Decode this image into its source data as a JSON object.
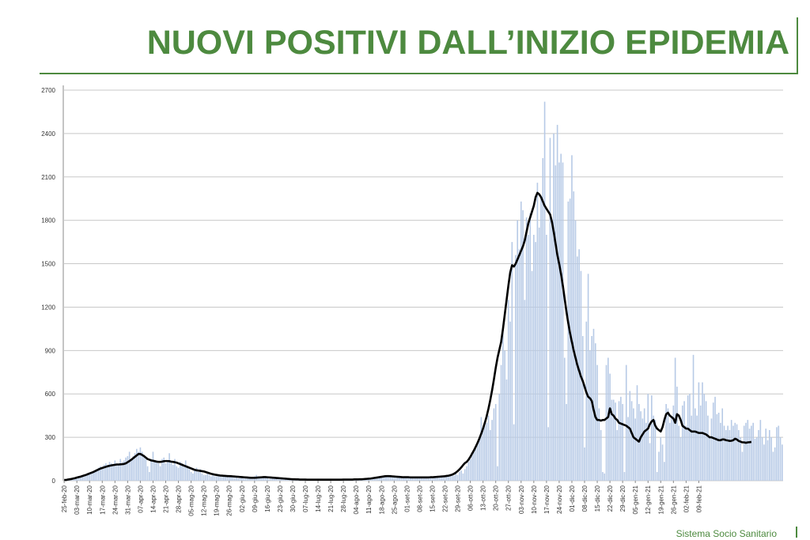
{
  "slide": {
    "title": "NUOVI POSITIVI DALL’INIZIO EPIDEMIA",
    "footer": "Sistema Socio Sanitario"
  },
  "colors": {
    "title": "#4d8a3f",
    "bars": "#b7cae6",
    "line": "#000000",
    "grid": "#c8c8c8"
  },
  "chart_data": {
    "type": "bar",
    "title": "",
    "xlabel": "",
    "ylabel": "",
    "ylim": [
      0,
      2700
    ],
    "yticks": [
      0,
      300,
      600,
      900,
      1200,
      1500,
      1800,
      2100,
      2400,
      2700
    ],
    "grid": true,
    "x_start": "25-feb-20",
    "tick_every_days": 7,
    "xtick_labels": [
      "25-feb-20",
      "03-mar-20",
      "10-mar-20",
      "17-mar-20",
      "24-mar-20",
      "31-mar-20",
      "07-apr-20",
      "14-apr-20",
      "21-apr-20",
      "28-apr-20",
      "05-mag-20",
      "12-mag-20",
      "19-mag-20",
      "26-mag-20",
      "02-giu-20",
      "09-giu-20",
      "16-giu-20",
      "23-giu-20",
      "30-giu-20",
      "07-lug-20",
      "14-lug-20",
      "21-lug-20",
      "28-lug-20",
      "04-ago-20",
      "11-ago-20",
      "18-ago-20",
      "25-ago-20",
      "01-set-20",
      "08-set-20",
      "15-set-20",
      "22-set-20",
      "29-set-20",
      "06-ott-20",
      "13-ott-20",
      "20-ott-20",
      "27-ott-20",
      "03-nov-20",
      "10-nov-20",
      "17-nov-20",
      "24-nov-20",
      "01-dic-20",
      "08-dic-20",
      "15-dic-20",
      "22-dic-20",
      "29-dic-20",
      "05-gen-21",
      "12-gen-21",
      "19-gen-21",
      "26-gen-21",
      "02-feb-21",
      "09-feb-21"
    ],
    "series": [
      {
        "kind": "bar",
        "values": [
          0,
          0,
          5,
          10,
          15,
          15,
          20,
          25,
          20,
          30,
          35,
          40,
          45,
          50,
          55,
          60,
          60,
          70,
          80,
          90,
          100,
          90,
          110,
          120,
          110,
          130,
          120,
          100,
          140,
          120,
          110,
          150,
          130,
          140,
          160,
          170,
          200,
          150,
          170,
          190,
          220,
          200,
          230,
          200,
          180,
          150,
          100,
          60,
          150,
          200,
          130,
          140,
          120,
          100,
          150,
          160,
          120,
          140,
          190,
          130,
          110,
          150,
          100,
          90,
          130,
          120,
          100,
          140,
          90,
          80,
          60,
          50,
          70,
          90,
          60,
          80,
          50,
          40,
          40,
          50,
          40,
          30,
          40,
          30,
          30,
          30,
          40,
          30,
          35,
          30,
          40,
          35,
          30,
          25,
          20,
          25,
          15,
          20,
          20,
          15,
          15,
          20,
          20,
          25,
          20,
          30,
          40,
          30,
          30,
          25,
          20,
          25,
          20,
          10,
          15,
          20,
          15,
          15,
          10,
          10,
          10,
          10,
          15,
          10,
          10,
          10,
          5,
          5,
          10,
          10,
          5,
          5,
          5,
          10,
          5,
          5,
          5,
          10,
          5,
          5,
          5,
          5,
          5,
          5,
          10,
          5,
          5,
          5,
          10,
          5,
          5,
          5,
          10,
          5,
          5,
          10,
          10,
          5,
          5,
          5,
          10,
          10,
          5,
          10,
          15,
          5,
          10,
          15,
          10,
          10,
          20,
          15,
          20,
          25,
          20,
          25,
          30,
          35,
          30,
          30,
          40,
          30,
          35,
          30,
          30,
          35,
          25,
          30,
          25,
          20,
          25,
          30,
          20,
          20,
          25,
          20,
          25,
          20,
          15,
          20,
          25,
          15,
          20,
          25,
          20,
          20,
          30,
          25,
          25,
          25,
          30,
          40,
          30,
          30,
          45,
          35,
          50,
          40,
          60,
          70,
          50,
          80,
          100,
          130,
          150,
          180,
          200,
          220,
          250,
          300,
          440,
          350,
          380,
          400,
          450,
          350,
          420,
          500,
          530,
          100,
          600,
          800,
          1040,
          900,
          700,
          1250,
          1100,
          1650,
          390,
          1560,
          1800,
          1600,
          1930,
          1870,
          1250,
          1820,
          1700,
          1850,
          1450,
          1700,
          1650,
          2060,
          1750,
          1950,
          2230,
          2620,
          1700,
          370,
          2370,
          1800,
          2400,
          2180,
          2460,
          2200,
          2260,
          2200,
          850,
          530,
          1930,
          1950,
          2250,
          2000,
          1800,
          1550,
          1600,
          1450,
          1000,
          230,
          1100,
          1430,
          900,
          1000,
          1050,
          950,
          800,
          500,
          350,
          60,
          50,
          800,
          850,
          740,
          560,
          560,
          540,
          350,
          550,
          580,
          530,
          60,
          800,
          440,
          620,
          550,
          500,
          430,
          660,
          530,
          480,
          430,
          500,
          400,
          600,
          260,
          590,
          450,
          420,
          60,
          200,
          300,
          250,
          130,
          530,
          500,
          400,
          440,
          520,
          850,
          650,
          380,
          300,
          520,
          550,
          380,
          590,
          600,
          450,
          870,
          500,
          450,
          680,
          520,
          680,
          600,
          550,
          450,
          300,
          430,
          540,
          580,
          460,
          470,
          400,
          500,
          380,
          350,
          380,
          350,
          420,
          380,
          400,
          390,
          350,
          300,
          200,
          380,
          400,
          420,
          360,
          380,
          400,
          290,
          300,
          350,
          420,
          300,
          250,
          360,
          280,
          350,
          300,
          200,
          230,
          370,
          380,
          300,
          250
        ]
      },
      {
        "kind": "line",
        "values": [
          5,
          5,
          8,
          10,
          12,
          15,
          18,
          22,
          25,
          28,
          32,
          36,
          40,
          45,
          50,
          55,
          60,
          66,
          72,
          78,
          84,
          88,
          92,
          96,
          100,
          103,
          106,
          108,
          110,
          112,
          112,
          113,
          114,
          116,
          120,
          128,
          136,
          145,
          155,
          165,
          175,
          185,
          185,
          178,
          170,
          160,
          150,
          145,
          140,
          138,
          135,
          132,
          130,
          130,
          132,
          135,
          136,
          136,
          135,
          132,
          130,
          128,
          125,
          120,
          115,
          110,
          105,
          100,
          95,
          90,
          85,
          80,
          75,
          72,
          70,
          68,
          66,
          64,
          60,
          56,
          52,
          48,
          45,
          42,
          40,
          38,
          36,
          35,
          34,
          33,
          32,
          32,
          31,
          30,
          29,
          28,
          27,
          26,
          25,
          24,
          23,
          22,
          21,
          20,
          20,
          20,
          21,
          22,
          23,
          24,
          25,
          25,
          24,
          23,
          22,
          21,
          20,
          19,
          18,
          17,
          16,
          15,
          14,
          13,
          12,
          11,
          10,
          10,
          9,
          9,
          8,
          8,
          8,
          8,
          7,
          7,
          7,
          7,
          7,
          7,
          7,
          7,
          7,
          7,
          7,
          7,
          7,
          7,
          7,
          7,
          7,
          7,
          7,
          7,
          8,
          8,
          8,
          8,
          8,
          8,
          9,
          9,
          9,
          10,
          10,
          11,
          12,
          13,
          14,
          15,
          17,
          19,
          21,
          23,
          25,
          27,
          29,
          31,
          32,
          32,
          31,
          30,
          29,
          28,
          27,
          26,
          25,
          24,
          24,
          24,
          24,
          23,
          23,
          23,
          23,
          23,
          23,
          23,
          23,
          23,
          23,
          23,
          24,
          24,
          25,
          26,
          27,
          28,
          29,
          30,
          31,
          33,
          35,
          38,
          42,
          48,
          56,
          66,
          78,
          92,
          108,
          122,
          130,
          145,
          165,
          188,
          210,
          235,
          262,
          292,
          325,
          360,
          400,
          445,
          498,
          558,
          625,
          700,
          780,
          850,
          905,
          960,
          1050,
          1150,
          1250,
          1350,
          1440,
          1490,
          1480,
          1500,
          1530,
          1560,
          1590,
          1620,
          1660,
          1720,
          1780,
          1820,
          1860,
          1900,
          1960,
          1990,
          1980,
          1960,
          1930,
          1900,
          1880,
          1860,
          1840,
          1790,
          1720,
          1640,
          1560,
          1500,
          1430,
          1350,
          1260,
          1170,
          1090,
          1020,
          960,
          900,
          850,
          800,
          760,
          720,
          690,
          650,
          610,
          580,
          570,
          550,
          490,
          440,
          420,
          420,
          415,
          420,
          420,
          430,
          440,
          500,
          460,
          450,
          430,
          420,
          400,
          395,
          390,
          385,
          380,
          370,
          360,
          330,
          300,
          290,
          280,
          270,
          300,
          320,
          340,
          350,
          360,
          390,
          410,
          420,
          380,
          360,
          350,
          340,
          370,
          420,
          460,
          470,
          450,
          440,
          430,
          400,
          460,
          450,
          420,
          380,
          370,
          360,
          360,
          350,
          340,
          340,
          340,
          335,
          330,
          330,
          330,
          325,
          320,
          310,
          300,
          300,
          295,
          290,
          285,
          280,
          280,
          285,
          285,
          280,
          278,
          275,
          276,
          280,
          290,
          285,
          275,
          270,
          265,
          265,
          262,
          265,
          266,
          268
        ]
      }
    ]
  }
}
